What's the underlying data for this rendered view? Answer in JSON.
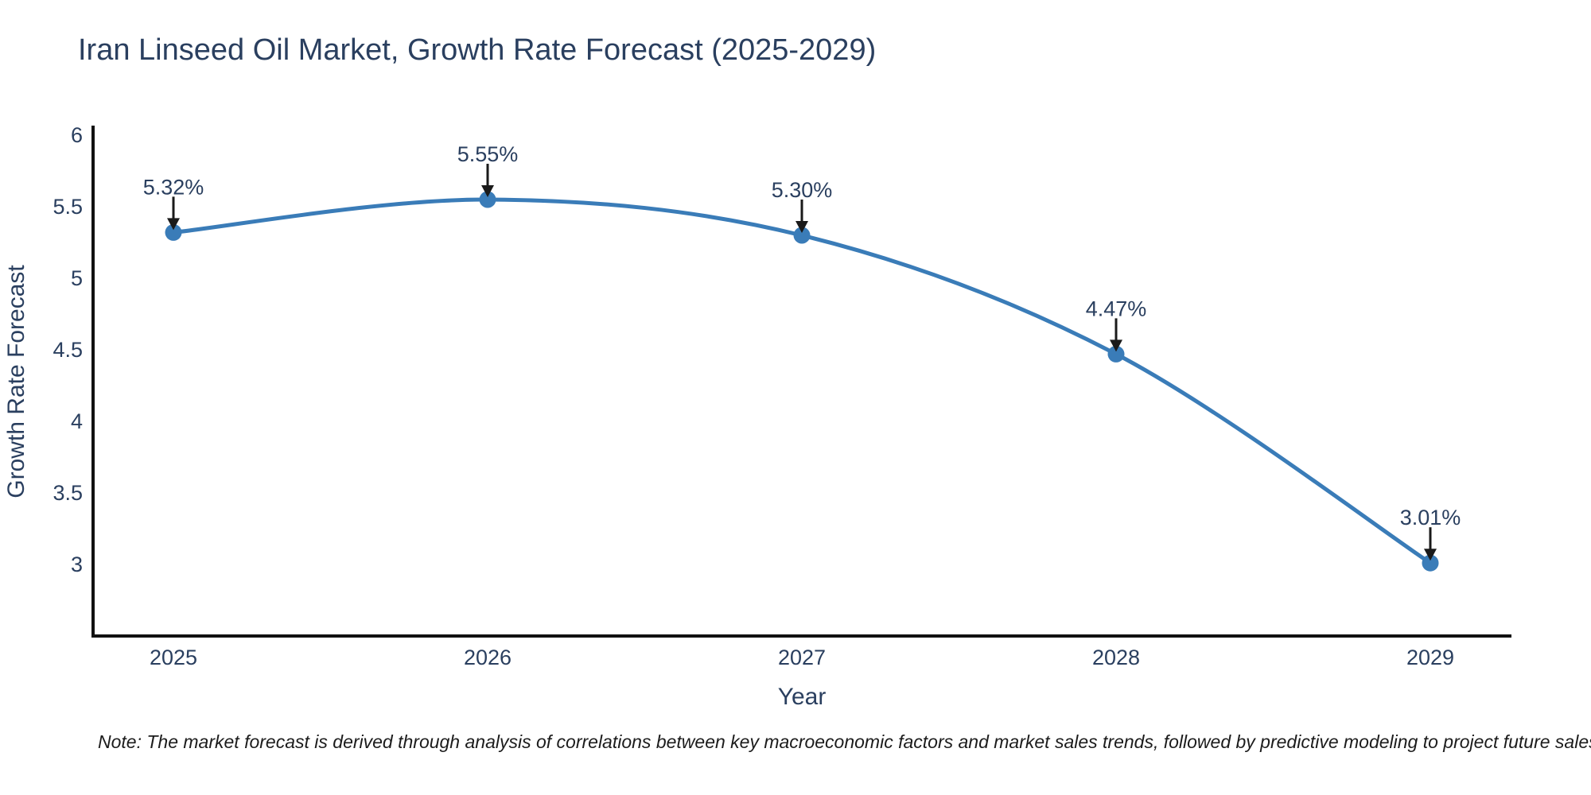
{
  "title": "Iran Linseed Oil Market, Growth Rate Forecast (2025-2029)",
  "note": "Note: The market forecast is derived through analysis of correlations between key macroeconomic factors and market sales trends, followed by predictive modeling to project future sales",
  "chart_data": {
    "type": "line",
    "title": "Iran Linseed Oil Market, Growth Rate Forecast (2025-2029)",
    "xlabel": "Year",
    "ylabel": "Growth Rate Forecast",
    "categories": [
      "2025",
      "2026",
      "2027",
      "2028",
      "2029"
    ],
    "series": [
      {
        "name": "Growth Rate Forecast",
        "values": [
          5.32,
          5.55,
          5.3,
          4.47,
          3.01
        ],
        "point_labels": [
          "5.32%",
          "5.55%",
          "5.30%",
          "4.47%",
          "3.01%"
        ]
      }
    ],
    "line_shape": "spline",
    "markers": true,
    "annotations_arrows": true,
    "ylim": [
      2.5,
      6.07
    ],
    "yticks": [
      3,
      3.5,
      4,
      4.5,
      5,
      5.5,
      6
    ],
    "ytick_labels": [
      "3",
      "3.5",
      "4",
      "4.5",
      "5",
      "5.5",
      "6"
    ],
    "grid": false,
    "legend_position": "none",
    "colors": {
      "line": "#3a7cb8",
      "marker": "#3a7cb8",
      "text": "#2a3f5f",
      "axis": "#111111",
      "arrow": "#1a1a1a",
      "note": "#1c1c1c",
      "background": "#ffffff"
    }
  }
}
